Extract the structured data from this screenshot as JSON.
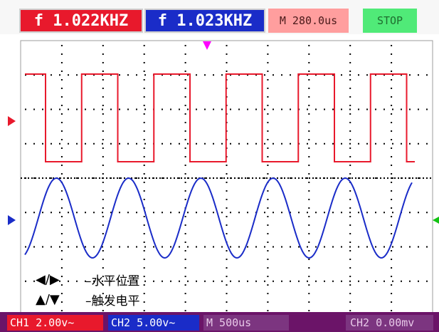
{
  "header": {
    "ch1_frequency": "f 1.022KHZ",
    "ch2_frequency": "f 1.023KHZ",
    "timebase": "M 280.0us",
    "run_status": "STOP"
  },
  "hints": [
    {
      "icons": "◀/▶",
      "label": "–水平位置"
    },
    {
      "icons": "▲/▼",
      "label": "–触发电平"
    }
  ],
  "footer": {
    "ch1_scale": "CH1 2.00v~",
    "ch2_scale": "CH2 5.00v~",
    "main_timebase": "M 500us",
    "trigger": "CH2 0.00mv"
  },
  "colors": {
    "ch1": "#e8192c",
    "ch2": "#1a2cc8",
    "grid": "#000000",
    "bottom_bar": "#6b1468",
    "status_bg": "#50ea78",
    "timebase_bg": "#ff9e9e"
  }
}
